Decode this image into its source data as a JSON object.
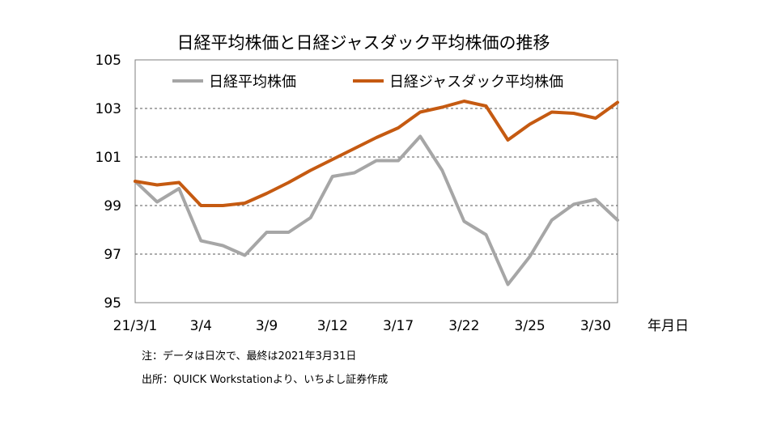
{
  "chart_data": {
    "type": "line",
    "title": "日経平均株価と日経ジャスダック平均株価の推移",
    "xlabel": "年月日",
    "ylabel": "",
    "ylim": [
      95,
      105
    ],
    "yticks": [
      95,
      97,
      99,
      101,
      103,
      105
    ],
    "grid": true,
    "legend": "top",
    "x": [
      "21/3/1",
      "3/2",
      "3/3",
      "3/4",
      "3/5",
      "3/8",
      "3/9",
      "3/10",
      "3/11",
      "3/12",
      "3/15",
      "3/16",
      "3/17",
      "3/18",
      "3/19",
      "3/22",
      "3/23",
      "3/24",
      "3/25",
      "3/26",
      "3/29",
      "3/30",
      "3/31"
    ],
    "xtick_labels": [
      {
        "index": 0,
        "label": "21/3/1"
      },
      {
        "index": 3,
        "label": "3/4"
      },
      {
        "index": 6,
        "label": "3/9"
      },
      {
        "index": 9,
        "label": "3/12"
      },
      {
        "index": 12,
        "label": "3/17"
      },
      {
        "index": 15,
        "label": "3/22"
      },
      {
        "index": 18,
        "label": "3/25"
      },
      {
        "index": 21,
        "label": "3/30"
      }
    ],
    "series": [
      {
        "name": "日経平均株価",
        "color": "#a6a6a6",
        "values": [
          100.0,
          99.15,
          99.7,
          97.55,
          97.35,
          96.95,
          97.9,
          97.9,
          98.5,
          100.2,
          100.35,
          100.85,
          100.85,
          101.85,
          100.45,
          98.35,
          97.8,
          95.75,
          96.9,
          98.4,
          99.05,
          99.25,
          98.4
        ]
      },
      {
        "name": "日経ジャスダック平均株価",
        "color": "#c55a11",
        "values": [
          100.0,
          99.85,
          99.95,
          99.0,
          99.0,
          99.1,
          99.5,
          99.95,
          100.45,
          100.9,
          101.35,
          101.8,
          102.2,
          102.85,
          103.05,
          103.3,
          103.1,
          101.7,
          102.35,
          102.85,
          102.8,
          102.6,
          103.25
        ]
      }
    ]
  },
  "notes": {
    "line1": "注：データは日次で、最終は2021年3月31日",
    "line2": "出所：QUICK Workstationより、いちよし証券作成"
  }
}
